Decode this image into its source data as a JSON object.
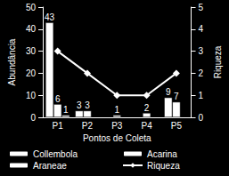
{
  "chart_data": {
    "type": "bar",
    "categories": [
      "P1",
      "P2",
      "P3",
      "P4",
      "P5"
    ],
    "x_label": "Pontos de Coleta",
    "y_label": "Abundância",
    "y2_label": "Riqueza",
    "ylim": [
      0,
      50
    ],
    "yticks": [
      0,
      10,
      20,
      30,
      40,
      50
    ],
    "y2lim": [
      0,
      5
    ],
    "y2ticks": [
      0,
      1,
      2,
      3,
      4,
      5
    ],
    "grid": false,
    "legend": "bottom",
    "series": [
      {
        "name": "Collembola",
        "type": "bar",
        "color": "#ffffff",
        "data_labels": true,
        "values": [
          43,
          3,
          null,
          null,
          9
        ]
      },
      {
        "name": "Acarina",
        "type": "bar",
        "color": "#ffffff",
        "data_labels": true,
        "values": [
          6,
          3,
          1,
          2,
          7
        ]
      },
      {
        "name": "Araneae",
        "type": "bar",
        "color": "#ffffff",
        "data_labels": true,
        "values": [
          1,
          null,
          null,
          null,
          null
        ]
      },
      {
        "name": "Riqueza",
        "type": "line",
        "axis": "y2",
        "color": "#ffffff",
        "marker": "diamond",
        "values": [
          3,
          2,
          1,
          1,
          2
        ]
      }
    ]
  }
}
